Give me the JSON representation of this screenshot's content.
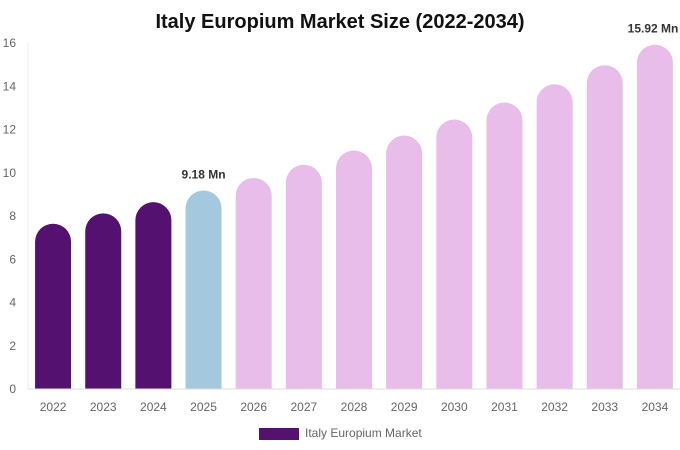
{
  "chart_data": {
    "type": "bar",
    "title": "Italy Europium Market Size (2022-2034)",
    "xlabel": "",
    "ylabel": "",
    "ylim": [
      0,
      16
    ],
    "yticks": [
      0,
      2,
      4,
      6,
      8,
      10,
      12,
      14,
      16
    ],
    "grid": false,
    "legend_position": "bottom",
    "categories": [
      "2022",
      "2023",
      "2024",
      "2025",
      "2026",
      "2027",
      "2028",
      "2029",
      "2030",
      "2031",
      "2032",
      "2033",
      "2034"
    ],
    "series": [
      {
        "name": "Italy Europium Market",
        "values": [
          7.64,
          8.12,
          8.64,
          9.18,
          9.76,
          10.37,
          11.03,
          11.72,
          12.46,
          13.25,
          14.09,
          14.97,
          15.92
        ]
      }
    ],
    "data_labels": [
      {
        "category": "2025",
        "text": "9.18 Mn"
      },
      {
        "category": "2034",
        "text": "15.92 Mn"
      }
    ],
    "colors": {
      "historical": "#541170",
      "current": "#a4c9de",
      "forecast": "#e8bde9"
    },
    "color_by_category": [
      "historical",
      "historical",
      "historical",
      "current",
      "forecast",
      "forecast",
      "forecast",
      "forecast",
      "forecast",
      "forecast",
      "forecast",
      "forecast",
      "forecast"
    ]
  }
}
